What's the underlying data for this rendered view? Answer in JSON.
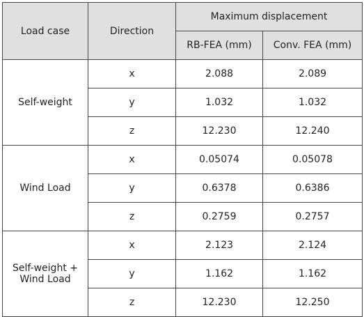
{
  "table": {
    "header": {
      "load_case": "Load case",
      "direction": "Direction",
      "group": "Maximum displacement",
      "col1": "RB-FEA (mm)",
      "col2": "Conv. FEA (mm)"
    },
    "groups": [
      {
        "label": "Self-weight",
        "rows": [
          [
            "x",
            "2.088",
            "2.089"
          ],
          [
            "y",
            "1.032",
            "1.032"
          ],
          [
            "z",
            "12.230",
            "12.240"
          ]
        ]
      },
      {
        "label": "Wind Load",
        "rows": [
          [
            "x",
            "0.05074",
            "0.05078"
          ],
          [
            "y",
            "0.6378",
            "0.6386"
          ],
          [
            "z",
            "0.2759",
            "0.2757"
          ]
        ]
      },
      {
        "label": "Self-weight + Wind Load",
        "rows": [
          [
            "x",
            "2.123",
            "2.124"
          ],
          [
            "y",
            "1.162",
            "1.162"
          ],
          [
            "z",
            "12.230",
            "12.250"
          ]
        ]
      }
    ]
  }
}
